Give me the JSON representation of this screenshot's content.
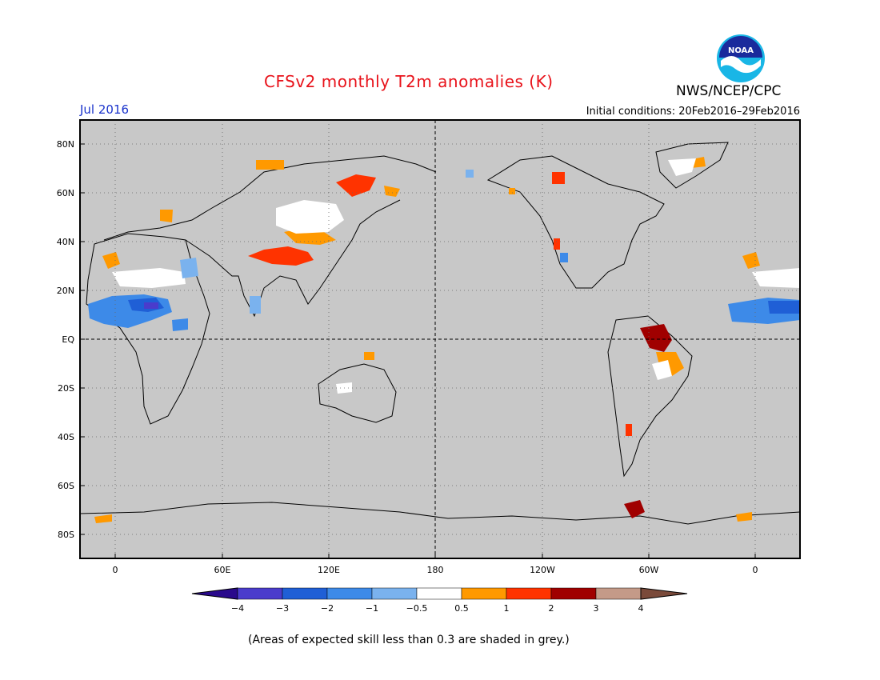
{
  "title": "CFSv2 monthly T2m anomalies (K)",
  "valid_month": "Jul 2016",
  "initial_conditions": "Initial conditions: 20Feb2016–29Feb2016",
  "agency": "NWS/NCEP/CPC",
  "logo_text": "NOAA",
  "footnote": "(Areas of expected skill less than 0.3 are shaded in grey.)",
  "lat_labels": [
    "80N",
    "60N",
    "40N",
    "20N",
    "EQ",
    "20S",
    "40S",
    "60S",
    "80S"
  ],
  "lon_labels": [
    "0",
    "60E",
    "120E",
    "180",
    "120W",
    "60W",
    "0"
  ],
  "colorbar": {
    "labels": [
      "−4",
      "−3",
      "−2",
      "−1",
      "−0.5",
      "0.5",
      "1",
      "2",
      "3",
      "4"
    ],
    "colors": [
      "#2a0a8c",
      "#4a3ccc",
      "#1f5fd6",
      "#3d8ae8",
      "#7ab2ee",
      "#ffffff",
      "#ff9900",
      "#ff3300",
      "#a00000",
      "#c49a88",
      "#7a4a3a"
    ]
  },
  "colors": {
    "background_grey": "#c8c8c8",
    "title": "#e8121a",
    "valid_month": "#1a33cc"
  }
}
